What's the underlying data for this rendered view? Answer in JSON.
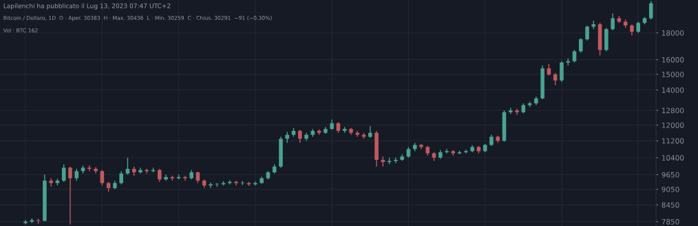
{
  "chart_data": {
    "type": "candlestick",
    "annotations": [
      "Lapilenchi ha pubblicato il Lug 13, 2023 07:47 UTC+2",
      "Bitcoin / Dollaro, 1D  O · Aper. 30383  H · Max. 30436  L · Min. 30259  C · Chius. 30291  −91 (−0.30%)",
      "Vol · BTC 162"
    ],
    "categories": [
      null,
      null,
      null,
      null,
      null,
      null,
      null,
      null,
      null,
      null,
      null,
      null,
      null,
      null,
      null,
      null,
      null,
      null,
      null,
      null,
      null,
      null,
      null,
      null,
      null,
      null,
      null,
      null,
      null,
      null,
      null,
      null,
      null,
      null,
      null,
      null,
      null,
      null,
      null,
      null,
      null,
      null,
      null,
      null,
      null,
      null,
      null,
      null,
      null,
      null,
      null,
      null,
      null,
      null,
      null,
      null,
      null,
      null,
      null,
      null,
      null,
      null,
      null,
      null,
      null,
      null,
      null,
      null,
      null,
      null,
      null,
      null,
      null,
      null,
      null,
      null,
      null,
      null,
      null,
      null,
      null,
      null,
      null,
      null,
      null,
      null,
      null,
      null,
      null,
      null,
      null,
      null,
      null,
      null,
      null,
      null,
      null,
      null,
      null
    ],
    "ohlc": [
      [
        7800,
        7900,
        7760,
        7850
      ],
      [
        7850,
        7960,
        7800,
        7900
      ],
      [
        7900,
        7950,
        7780,
        7880
      ],
      [
        7880,
        9650,
        7860,
        9400
      ],
      [
        9400,
        9500,
        9150,
        9300
      ],
      [
        9300,
        9480,
        9200,
        9400
      ],
      [
        9400,
        10100,
        9350,
        9950
      ],
      [
        9950,
        10000,
        7750,
        9500
      ],
      [
        9500,
        9900,
        9400,
        9800
      ],
      [
        9800,
        10050,
        9700,
        9950
      ],
      [
        9950,
        10050,
        9800,
        9900
      ],
      [
        9900,
        9980,
        9700,
        9800
      ],
      [
        9800,
        9850,
        9200,
        9300
      ],
      [
        9300,
        9350,
        8950,
        9100
      ],
      [
        9100,
        9400,
        9050,
        9300
      ],
      [
        9300,
        9800,
        9250,
        9700
      ],
      [
        9700,
        10400,
        9650,
        9900
      ],
      [
        9900,
        10000,
        9600,
        9750
      ],
      [
        9750,
        9950,
        9700,
        9850
      ],
      [
        9850,
        9900,
        9700,
        9800
      ],
      [
        9800,
        9950,
        9750,
        9850
      ],
      [
        9850,
        9900,
        9350,
        9450
      ],
      [
        9450,
        9650,
        9400,
        9550
      ],
      [
        9550,
        9600,
        9400,
        9500
      ],
      [
        9500,
        9650,
        9450,
        9550
      ],
      [
        9550,
        9600,
        9400,
        9500
      ],
      [
        9500,
        9850,
        9450,
        9750
      ],
      [
        9750,
        9780,
        9300,
        9400
      ],
      [
        9400,
        9450,
        9100,
        9200
      ],
      [
        9200,
        9320,
        9100,
        9250
      ],
      [
        9250,
        9300,
        9150,
        9270
      ],
      [
        9250,
        9380,
        9200,
        9300
      ],
      [
        9300,
        9420,
        9250,
        9350
      ],
      [
        9350,
        9400,
        9200,
        9300
      ],
      [
        9300,
        9380,
        9220,
        9320
      ],
      [
        9300,
        9350,
        9180,
        9250
      ],
      [
        9250,
        9360,
        9200,
        9300
      ],
      [
        9300,
        9560,
        9280,
        9500
      ],
      [
        9500,
        9800,
        9450,
        9750
      ],
      [
        9750,
        10100,
        9700,
        10000
      ],
      [
        10000,
        11400,
        9950,
        11300
      ],
      [
        11300,
        11650,
        11100,
        11500
      ],
      [
        11500,
        11850,
        11400,
        11700
      ],
      [
        11700,
        11750,
        11100,
        11300
      ],
      [
        11300,
        11600,
        11200,
        11500
      ],
      [
        11500,
        11800,
        11400,
        11700
      ],
      [
        11700,
        11780,
        11500,
        11600
      ],
      [
        11600,
        11900,
        11550,
        11800
      ],
      [
        11800,
        12300,
        11750,
        12100
      ],
      [
        12100,
        12150,
        11600,
        11700
      ],
      [
        11700,
        11900,
        11600,
        11800
      ],
      [
        11800,
        11850,
        11500,
        11600
      ],
      [
        11600,
        11700,
        11400,
        11500
      ],
      [
        11500,
        11600,
        11300,
        11400
      ],
      [
        11400,
        11950,
        11350,
        11600
      ],
      [
        11600,
        11700,
        10000,
        10300
      ],
      [
        10300,
        10450,
        10000,
        10200
      ],
      [
        10200,
        10400,
        10100,
        10250
      ],
      [
        10250,
        10400,
        10150,
        10300
      ],
      [
        10300,
        10550,
        10250,
        10450
      ],
      [
        10450,
        10900,
        10400,
        10800
      ],
      [
        10800,
        11100,
        10700,
        11000
      ],
      [
        11000,
        11050,
        10800,
        10900
      ],
      [
        10900,
        10950,
        10500,
        10600
      ],
      [
        10600,
        10650,
        10250,
        10400
      ],
      [
        10400,
        10750,
        10350,
        10650
      ],
      [
        10650,
        10800,
        10600,
        10700
      ],
      [
        10700,
        10750,
        10500,
        10600
      ],
      [
        10600,
        10720,
        10550,
        10650
      ],
      [
        10650,
        10780,
        10600,
        10700
      ],
      [
        10700,
        10980,
        10650,
        10900
      ],
      [
        10900,
        10950,
        10600,
        10700
      ],
      [
        10700,
        11050,
        10650,
        11000
      ],
      [
        11000,
        11500,
        10950,
        11400
      ],
      [
        11400,
        11450,
        11100,
        11200
      ],
      [
        11200,
        12800,
        11150,
        12700
      ],
      [
        12700,
        12950,
        12600,
        12800
      ],
      [
        12800,
        12900,
        12550,
        12700
      ],
      [
        12700,
        13200,
        12650,
        13100
      ],
      [
        13100,
        13300,
        13000,
        13200
      ],
      [
        13200,
        13600,
        13100,
        13500
      ],
      [
        13500,
        15600,
        13450,
        15400
      ],
      [
        15400,
        15700,
        14900,
        15000
      ],
      [
        15000,
        15100,
        14300,
        14600
      ],
      [
        14600,
        15900,
        14500,
        15800
      ],
      [
        15800,
        16100,
        15600,
        15900
      ],
      [
        15900,
        16700,
        15800,
        16600
      ],
      [
        16600,
        17600,
        16500,
        17500
      ],
      [
        17500,
        18600,
        17400,
        18500
      ],
      [
        18500,
        19000,
        18300,
        18700
      ],
      [
        18700,
        18800,
        16300,
        16700
      ],
      [
        16700,
        18400,
        16600,
        18300
      ],
      [
        18300,
        19600,
        18200,
        19200
      ],
      [
        19200,
        19400,
        18800,
        18900
      ],
      [
        18900,
        19100,
        18400,
        18600
      ],
      [
        18600,
        18700,
        17800,
        18100
      ],
      [
        18100,
        18900,
        18000,
        18800
      ],
      [
        18800,
        19300,
        18700,
        19200
      ],
      [
        19200,
        20700,
        19100,
        20500
      ]
    ],
    "colors": [
      "#4aa391",
      "#4aa391",
      "#c05a5e",
      "#4aa391",
      "#c05a5e",
      "#4aa391",
      "#4aa391",
      "#c05a5e",
      "#4aa391",
      "#4aa391",
      "#c05a5e",
      "#c05a5e",
      "#c05a5e",
      "#c05a5e",
      "#4aa391",
      "#4aa391",
      "#4aa391",
      "#c05a5e",
      "#4aa391",
      "#c05a5e",
      "#4aa391",
      "#c05a5e",
      "#4aa391",
      "#c05a5e",
      "#4aa391",
      "#c05a5e",
      "#4aa391",
      "#c05a5e",
      "#c05a5e",
      "#4aa391",
      "#4aa391",
      "#4aa391",
      "#4aa391",
      "#c05a5e",
      "#4aa391",
      "#c05a5e",
      "#4aa391",
      "#4aa391",
      "#4aa391",
      "#4aa391",
      "#4aa391",
      "#4aa391",
      "#4aa391",
      "#c05a5e",
      "#4aa391",
      "#4aa391",
      "#c05a5e",
      "#4aa391",
      "#4aa391",
      "#c05a5e",
      "#4aa391",
      "#c05a5e",
      "#c05a5e",
      "#c05a5e",
      "#4aa391",
      "#c05a5e",
      "#c05a5e",
      "#4aa391",
      "#4aa391",
      "#4aa391",
      "#4aa391",
      "#4aa391",
      "#c05a5e",
      "#c05a5e",
      "#c05a5e",
      "#4aa391",
      "#4aa391",
      "#c05a5e",
      "#4aa391",
      "#4aa391",
      "#4aa391",
      "#c05a5e",
      "#4aa391",
      "#4aa391",
      "#c05a5e",
      "#4aa391",
      "#4aa391",
      "#c05a5e",
      "#4aa391",
      "#4aa391",
      "#4aa391",
      "#4aa391",
      "#c05a5e",
      "#c05a5e",
      "#4aa391",
      "#4aa391",
      "#4aa391",
      "#4aa391",
      "#4aa391",
      "#4aa391",
      "#c05a5e",
      "#4aa391",
      "#4aa391",
      "#c05a5e",
      "#c05a5e",
      "#c05a5e",
      "#4aa391",
      "#4aa391",
      "#4aa391"
    ],
    "log": "y",
    "ylim": [
      7700,
      20800
    ],
    "yticks": [
      7850,
      8450,
      9050,
      9650,
      10400,
      11200,
      12000,
      12800,
      14000,
      15000,
      16000,
      18000
    ],
    "grid": true,
    "tick_labels": "y"
  }
}
